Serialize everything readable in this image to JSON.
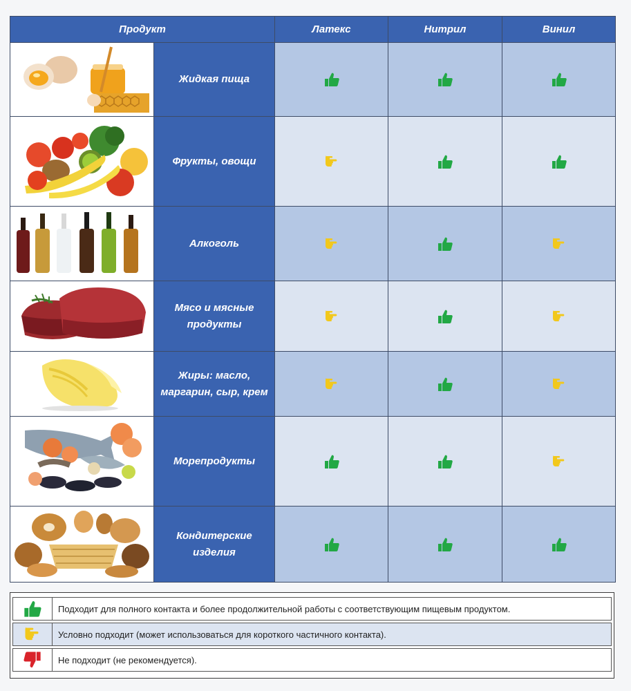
{
  "header": {
    "product": "Продукт",
    "latex": "Латекс",
    "nitrile": "Нитрил",
    "vinyl": "Винил"
  },
  "rows": [
    {
      "name": "Жидкая пища",
      "image": "eggs-and-honey-photo",
      "latex": "good",
      "nitrile": "good",
      "vinyl": "good"
    },
    {
      "name": "Фрукты, овощи",
      "image": "fruits-vegetables-photo",
      "latex": "conditional",
      "nitrile": "good",
      "vinyl": "good"
    },
    {
      "name": "Алкоголь",
      "image": "bottles-photo",
      "latex": "conditional",
      "nitrile": "good",
      "vinyl": "conditional"
    },
    {
      "name": "Мясо и мясные продукты",
      "image": "meat-photo",
      "latex": "conditional",
      "nitrile": "good",
      "vinyl": "conditional"
    },
    {
      "name": "Жиры: масло, маргарин, сыр, крем",
      "image": "butter-curl-photo",
      "latex": "conditional",
      "nitrile": "good",
      "vinyl": "conditional"
    },
    {
      "name": "Морепродукты",
      "image": "seafood-photo",
      "latex": "good",
      "nitrile": "good",
      "vinyl": "conditional"
    },
    {
      "name": "Кондитерские изделия",
      "image": "bakery-photo",
      "latex": "good",
      "nitrile": "good",
      "vinyl": "good"
    }
  ],
  "legend": [
    {
      "icon": "thumbs-up-icon",
      "text": "Подходит для полного контакта и более продолжительной работы с соответствующим пищевым продуктом."
    },
    {
      "icon": "hand-pointing-icon",
      "text": "Условно подходит (может использоваться для короткого частичного контакта)."
    },
    {
      "icon": "thumbs-down-icon",
      "text": "Не подходит (не рекомендуется)."
    }
  ],
  "colors": {
    "header_blue": "#3a63b0",
    "good": "#22a845",
    "conditional": "#f2c81c",
    "bad": "#d9232a",
    "cell_dark": "#b4c7e4",
    "cell_light": "#dce4f1"
  }
}
